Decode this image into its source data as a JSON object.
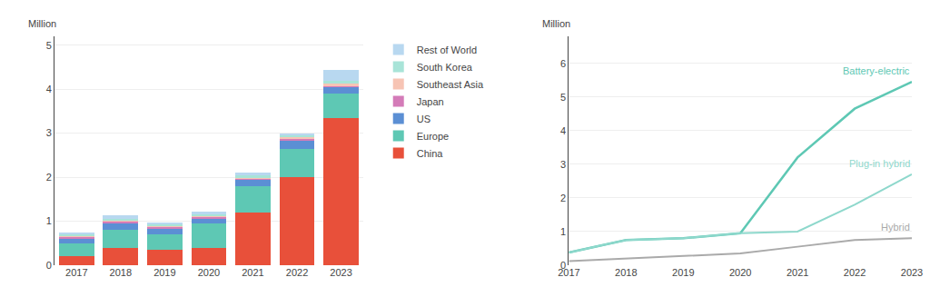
{
  "chart_data": [
    {
      "type": "bar",
      "stacked": true,
      "ylabel": "Million",
      "categories": [
        "2017",
        "2018",
        "2019",
        "2020",
        "2021",
        "2022",
        "2023"
      ],
      "series": [
        {
          "name": "China",
          "color": "#e8503a",
          "values": [
            0.2,
            0.4,
            0.35,
            0.4,
            1.2,
            2.0,
            3.35
          ]
        },
        {
          "name": "Europe",
          "color": "#5ec8b4",
          "values": [
            0.3,
            0.4,
            0.35,
            0.55,
            0.6,
            0.65,
            0.55
          ]
        },
        {
          "name": "US",
          "color": "#5b8fd4",
          "values": [
            0.1,
            0.15,
            0.12,
            0.12,
            0.14,
            0.18,
            0.15
          ]
        },
        {
          "name": "Japan",
          "color": "#d47bb8",
          "values": [
            0.05,
            0.05,
            0.05,
            0.04,
            0.04,
            0.04,
            0.03
          ]
        },
        {
          "name": "Southeast Asia",
          "color": "#f7c4b4",
          "values": [
            0.02,
            0.02,
            0.02,
            0.02,
            0.02,
            0.03,
            0.04
          ]
        },
        {
          "name": "South Korea",
          "color": "#a8e4d8",
          "values": [
            0.03,
            0.03,
            0.03,
            0.03,
            0.04,
            0.05,
            0.07
          ]
        },
        {
          "name": "Rest of World",
          "color": "#b8d8f0",
          "values": [
            0.05,
            0.08,
            0.06,
            0.05,
            0.06,
            0.05,
            0.25
          ]
        }
      ],
      "ylim": [
        0,
        5.2
      ],
      "yticks": [
        0,
        1,
        2,
        3,
        4,
        5
      ],
      "grid": true,
      "legend": "right"
    },
    {
      "type": "line",
      "ylabel": "Million",
      "x": [
        2017,
        2018,
        2019,
        2020,
        2021,
        2022,
        2023
      ],
      "series": [
        {
          "name": "Battery-electric",
          "color": "#5ec8b4",
          "values": [
            0.38,
            0.75,
            0.8,
            0.95,
            3.2,
            4.65,
            5.45
          ]
        },
        {
          "name": "Plug-in hybrid",
          "color": "#8ed8cc",
          "values": [
            0.38,
            0.75,
            0.8,
            0.95,
            1.0,
            1.8,
            2.7
          ]
        },
        {
          "name": "Hybrid",
          "color": "#aaaaaa",
          "values": [
            0.12,
            0.2,
            0.28,
            0.35,
            0.55,
            0.75,
            0.8
          ]
        }
      ],
      "xlim": [
        2017,
        2023
      ],
      "xticks": [
        2017,
        2018,
        2019,
        2020,
        2021,
        2022,
        2023
      ],
      "ylim": [
        0,
        6.8
      ],
      "yticks": [
        0,
        1,
        2,
        3,
        4,
        5,
        6
      ],
      "grid": true
    }
  ]
}
